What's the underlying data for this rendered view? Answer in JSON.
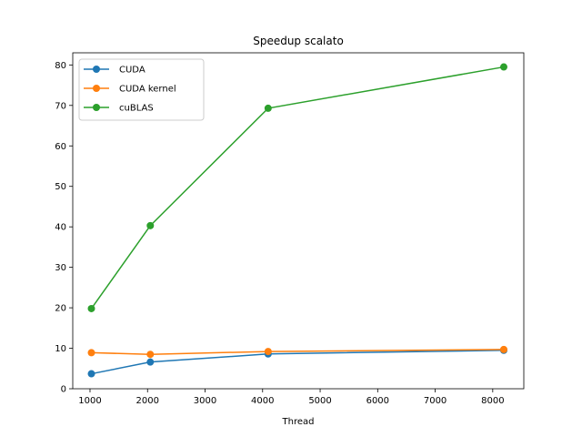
{
  "chart_data": {
    "type": "line",
    "title": "Speedup scalato",
    "xlabel": "Thread",
    "ylabel": "",
    "xlim": [
      700,
      8540
    ],
    "ylim": [
      0,
      83
    ],
    "xticks": [
      1000,
      2000,
      3000,
      4000,
      5000,
      6000,
      7000,
      8000
    ],
    "yticks": [
      0,
      10,
      20,
      30,
      40,
      50,
      60,
      70,
      80
    ],
    "grid": false,
    "legend_position": "top-left",
    "x": [
      1024,
      2048,
      4096,
      8192
    ],
    "series": [
      {
        "name": "CUDA",
        "color": "#1f77b4",
        "values": [
          3.7,
          6.6,
          8.6,
          9.5
        ]
      },
      {
        "name": "CUDA kernel",
        "color": "#ff7f0e",
        "values": [
          8.9,
          8.5,
          9.2,
          9.7
        ]
      },
      {
        "name": "cuBLAS",
        "color": "#2ca02c",
        "values": [
          19.8,
          40.3,
          69.3,
          79.5
        ]
      }
    ]
  }
}
